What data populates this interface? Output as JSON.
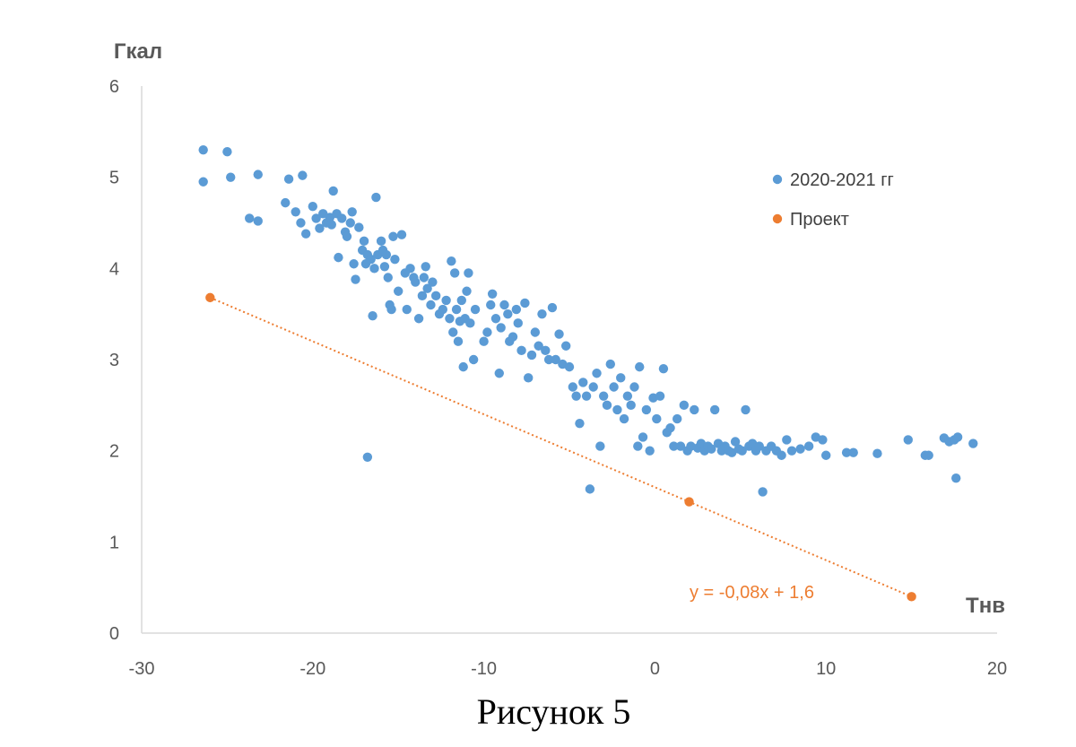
{
  "caption": "Рисунок 5",
  "chart_data": {
    "type": "scatter",
    "title": "",
    "xlabel": "Тнв",
    "ylabel": "Гкал",
    "xlim": [
      -30,
      20
    ],
    "ylim": [
      0,
      6
    ],
    "xticks": [
      "-30",
      "-20",
      "-10",
      "0",
      "10",
      "20"
    ],
    "yticks": [
      "0",
      "1",
      "2",
      "3",
      "4",
      "5",
      "6"
    ],
    "grid": false,
    "legend_position": "top-right",
    "colors": {
      "observed": "#5B9BD5",
      "project": "#ED7D31",
      "axis": "#D9D9D9"
    },
    "series": [
      {
        "name": "2020-2021 гг",
        "marker": "circle",
        "points": [
          [
            -26.4,
            5.3
          ],
          [
            -26.4,
            4.95
          ],
          [
            -25,
            5.28
          ],
          [
            -24.8,
            5.0
          ],
          [
            -23.2,
            5.03
          ],
          [
            -23.7,
            4.55
          ],
          [
            -23.2,
            4.52
          ],
          [
            -21.6,
            4.72
          ],
          [
            -21.4,
            4.98
          ],
          [
            -21,
            4.62
          ],
          [
            -20.6,
            5.02
          ],
          [
            -20.7,
            4.5
          ],
          [
            -20.4,
            4.38
          ],
          [
            -20,
            4.68
          ],
          [
            -19.8,
            4.55
          ],
          [
            -19.6,
            4.44
          ],
          [
            -19.4,
            4.6
          ],
          [
            -19.2,
            4.5
          ],
          [
            -19,
            4.56
          ],
          [
            -18.9,
            4.48
          ],
          [
            -18.8,
            4.85
          ],
          [
            -18.6,
            4.6
          ],
          [
            -18.5,
            4.12
          ],
          [
            -18.3,
            4.55
          ],
          [
            -18.1,
            4.4
          ],
          [
            -18,
            4.35
          ],
          [
            -17.8,
            4.5
          ],
          [
            -17.7,
            4.62
          ],
          [
            -17.6,
            4.05
          ],
          [
            -17.5,
            3.88
          ],
          [
            -17.3,
            4.45
          ],
          [
            -17.1,
            4.2
          ],
          [
            -17,
            4.3
          ],
          [
            -16.9,
            4.05
          ],
          [
            -16.8,
            4.15
          ],
          [
            -16.6,
            4.1
          ],
          [
            -16.4,
            4.0
          ],
          [
            -16.3,
            4.78
          ],
          [
            -16.2,
            4.15
          ],
          [
            -16,
            4.3
          ],
          [
            -15.9,
            4.2
          ],
          [
            -15.8,
            4.02
          ],
          [
            -15.7,
            4.15
          ],
          [
            -15.6,
            3.9
          ],
          [
            -15.5,
            3.6
          ],
          [
            -15.4,
            3.55
          ],
          [
            -15.3,
            4.35
          ],
          [
            -15.2,
            4.1
          ],
          [
            -15,
            3.75
          ],
          [
            -14.8,
            4.37
          ],
          [
            -14.6,
            3.95
          ],
          [
            -14.5,
            3.55
          ],
          [
            -14.3,
            4.0
          ],
          [
            -14.1,
            3.9
          ],
          [
            -14,
            3.85
          ],
          [
            -13.8,
            3.45
          ],
          [
            -13.6,
            3.7
          ],
          [
            -13.5,
            3.9
          ],
          [
            -13.4,
            4.02
          ],
          [
            -13.3,
            3.78
          ],
          [
            -13.1,
            3.6
          ],
          [
            -13,
            3.85
          ],
          [
            -12.8,
            3.7
          ],
          [
            -12.6,
            3.5
          ],
          [
            -12.4,
            3.55
          ],
          [
            -12.2,
            3.65
          ],
          [
            -12,
            3.45
          ],
          [
            -11.9,
            4.08
          ],
          [
            -11.8,
            3.3
          ],
          [
            -11.7,
            3.95
          ],
          [
            -11.6,
            3.55
          ],
          [
            -11.5,
            3.2
          ],
          [
            -11.4,
            3.42
          ],
          [
            -11.3,
            3.65
          ],
          [
            -11.2,
            2.92
          ],
          [
            -11.1,
            3.45
          ],
          [
            -11,
            3.75
          ],
          [
            -10.9,
            3.95
          ],
          [
            -10.8,
            3.4
          ],
          [
            -10.6,
            3.0
          ],
          [
            -10.5,
            3.55
          ],
          [
            -10,
            3.2
          ],
          [
            -9.8,
            3.3
          ],
          [
            -9.6,
            3.6
          ],
          [
            -9.5,
            3.72
          ],
          [
            -9.3,
            3.45
          ],
          [
            -9.1,
            2.85
          ],
          [
            -9,
            3.35
          ],
          [
            -8.8,
            3.6
          ],
          [
            -8.6,
            3.5
          ],
          [
            -8.5,
            3.2
          ],
          [
            -8.3,
            3.25
          ],
          [
            -8.1,
            3.55
          ],
          [
            -8,
            3.4
          ],
          [
            -7.8,
            3.1
          ],
          [
            -7.6,
            3.62
          ],
          [
            -7.4,
            2.8
          ],
          [
            -7.2,
            3.05
          ],
          [
            -7,
            3.3
          ],
          [
            -6.8,
            3.15
          ],
          [
            -6.6,
            3.5
          ],
          [
            -6.4,
            3.1
          ],
          [
            -6.2,
            3.0
          ],
          [
            -6,
            3.57
          ],
          [
            -5.8,
            3.0
          ],
          [
            -5.6,
            3.28
          ],
          [
            -5.4,
            2.95
          ],
          [
            -5.2,
            3.15
          ],
          [
            -5,
            2.92
          ],
          [
            -4.8,
            2.7
          ],
          [
            -4.6,
            2.6
          ],
          [
            -4.4,
            2.3
          ],
          [
            -4.2,
            2.75
          ],
          [
            -4,
            2.6
          ],
          [
            -3.8,
            1.58
          ],
          [
            -3.6,
            2.7
          ],
          [
            -3.4,
            2.85
          ],
          [
            -3.2,
            2.05
          ],
          [
            -3,
            2.6
          ],
          [
            -2.8,
            2.5
          ],
          [
            -2.6,
            2.95
          ],
          [
            -2.4,
            2.7
          ],
          [
            -2.2,
            2.45
          ],
          [
            -2,
            2.8
          ],
          [
            -1.8,
            2.35
          ],
          [
            -1.6,
            2.6
          ],
          [
            -1.4,
            2.5
          ],
          [
            -1.2,
            2.7
          ],
          [
            -1,
            2.05
          ],
          [
            -0.9,
            2.92
          ],
          [
            -0.7,
            2.15
          ],
          [
            -0.5,
            2.45
          ],
          [
            -0.3,
            2.0
          ],
          [
            -0.1,
            2.58
          ],
          [
            0.1,
            2.35
          ],
          [
            0.3,
            2.6
          ],
          [
            0.5,
            2.9
          ],
          [
            0.7,
            2.2
          ],
          [
            0.9,
            2.25
          ],
          [
            1.1,
            2.05
          ],
          [
            1.3,
            2.35
          ],
          [
            1.5,
            2.05
          ],
          [
            1.7,
            2.5
          ],
          [
            1.9,
            2.0
          ],
          [
            2.1,
            2.05
          ],
          [
            2.3,
            2.45
          ],
          [
            2.5,
            2.03
          ],
          [
            2.7,
            2.08
          ],
          [
            2.9,
            2.0
          ],
          [
            3.1,
            2.05
          ],
          [
            3.3,
            2.02
          ],
          [
            3.5,
            2.45
          ],
          [
            3.7,
            2.08
          ],
          [
            3.9,
            2.0
          ],
          [
            4.1,
            2.05
          ],
          [
            4.3,
            2.0
          ],
          [
            4.5,
            1.98
          ],
          [
            4.7,
            2.1
          ],
          [
            4.9,
            2.02
          ],
          [
            5.1,
            2.0
          ],
          [
            5.3,
            2.45
          ],
          [
            5.5,
            2.05
          ],
          [
            5.7,
            2.08
          ],
          [
            5.9,
            2.0
          ],
          [
            6.1,
            2.05
          ],
          [
            6.3,
            1.55
          ],
          [
            6.5,
            2.0
          ],
          [
            6.8,
            2.05
          ],
          [
            7.1,
            2.0
          ],
          [
            7.4,
            1.95
          ],
          [
            7.7,
            2.12
          ],
          [
            8,
            2.0
          ],
          [
            8.5,
            2.02
          ],
          [
            9,
            2.05
          ],
          [
            9.4,
            2.15
          ],
          [
            9.8,
            2.12
          ],
          [
            10,
            1.95
          ],
          [
            11.2,
            1.98
          ],
          [
            11.6,
            1.98
          ],
          [
            13,
            1.97
          ],
          [
            14.8,
            2.12
          ],
          [
            15.8,
            1.95
          ],
          [
            16,
            1.95
          ],
          [
            16.9,
            2.14
          ],
          [
            17.2,
            2.1
          ],
          [
            17.5,
            2.12
          ],
          [
            17.7,
            2.15
          ],
          [
            17.6,
            1.7
          ],
          [
            18.6,
            2.08
          ],
          [
            -16.8,
            1.93
          ],
          [
            -16.5,
            3.48
          ]
        ]
      },
      {
        "name": "Проект",
        "marker": "circle",
        "points": [
          [
            -26,
            3.68
          ],
          [
            2,
            1.44
          ],
          [
            15,
            0.4
          ]
        ],
        "trendline": {
          "type": "linear",
          "style": "dotted",
          "label": "y = -0,08x + 1,6"
        }
      }
    ]
  }
}
